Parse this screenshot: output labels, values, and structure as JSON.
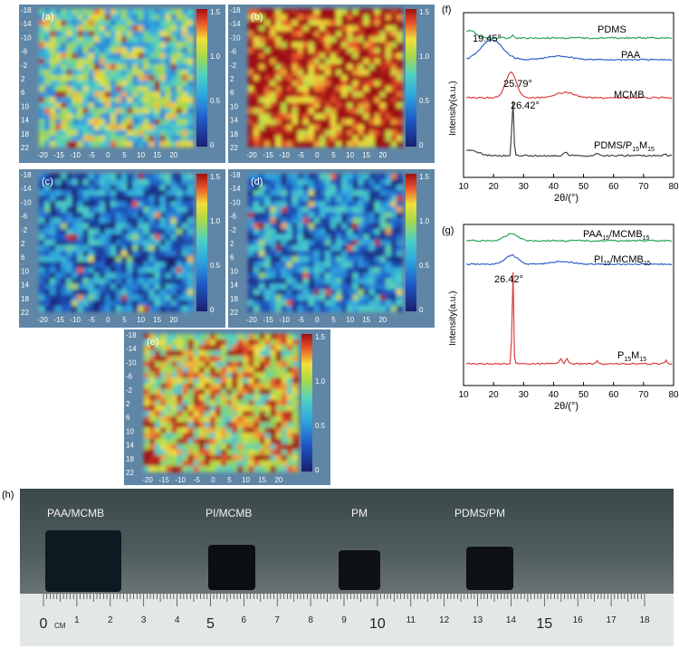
{
  "maps": {
    "ticks_y": [
      "-18",
      "-14",
      "-10",
      "-6",
      "-2",
      "2",
      "6",
      "10",
      "14",
      "18",
      "22"
    ],
    "ticks_x": [
      "-20",
      "-15",
      "-10",
      "-5",
      "0",
      "5",
      "10",
      "15",
      "20"
    ],
    "colorbar_ticks": [
      "1.5",
      "1.0",
      "0.5",
      "0"
    ],
    "panels": [
      {
        "label": "(a)",
        "mean_level": 0.55
      },
      {
        "label": "(b)",
        "mean_level": 0.95
      },
      {
        "label": "(c)",
        "mean_level": 0.25
      },
      {
        "label": "(d)",
        "mean_level": 0.28
      },
      {
        "label": "(e)",
        "mean_level": 0.75
      }
    ]
  },
  "xrd_f": {
    "panel_label": "(f)",
    "ylabel": "Intensity(a.u.)",
    "xlabel": "2θ/(°)",
    "xticks": [
      "10",
      "20",
      "30",
      "40",
      "50",
      "60",
      "70",
      "80"
    ],
    "traces": [
      {
        "name": "PDMS",
        "color": "#2ca35a"
      },
      {
        "name": "PAA",
        "color": "#2d63c8"
      },
      {
        "name": "MCMB",
        "color": "#d9403f"
      },
      {
        "name_main": "PDMS/P",
        "name_sub1": "15",
        "name_mid": "M",
        "name_sub2": "15",
        "color": "#444444"
      }
    ],
    "annotations": [
      "19.45°",
      "25.79°",
      "26.42°"
    ]
  },
  "xrd_g": {
    "panel_label": "(g)",
    "ylabel": "Intensity(a.u.)",
    "xlabel": "2θ/(°)",
    "xticks": [
      "10",
      "20",
      "30",
      "40",
      "50",
      "60",
      "70",
      "80"
    ],
    "traces": [
      {
        "name_main": "PAA",
        "name_sub1": "15",
        "name_mid": "/MCMB",
        "name_sub2": "15",
        "color": "#2ca35a"
      },
      {
        "name_main": "PI",
        "name_sub1": "15",
        "name_mid": "/MCMB",
        "name_sub2": "15",
        "color": "#2d63c8"
      },
      {
        "name_main": "P",
        "name_sub1": "15",
        "name_mid": "M",
        "name_sub2": "15",
        "color": "#d9403f"
      }
    ],
    "annotations": [
      "26.42°"
    ]
  },
  "photo": {
    "panel_label": "(h)",
    "samples": [
      "PAA/MCMB",
      "PI/MCMB",
      "PM",
      "PDMS/PM"
    ],
    "ruler_numbers": [
      "0",
      "1",
      "2",
      "3",
      "4",
      "5",
      "6",
      "7",
      "8",
      "9",
      "10",
      "11",
      "12",
      "13",
      "14",
      "15",
      "16",
      "17",
      "18"
    ],
    "ruler_unit": "CM"
  },
  "chart_data": [
    {
      "type": "line",
      "title": "(f)",
      "xlabel": "2θ/(°)",
      "ylabel": "Intensity(a.u.)",
      "xlim": [
        10,
        80
      ],
      "series": [
        {
          "name": "PDMS",
          "peaks": [
            12
          ]
        },
        {
          "name": "PAA",
          "peaks": [
            19.45
          ]
        },
        {
          "name": "MCMB",
          "peaks": [
            25.79
          ]
        },
        {
          "name": "PDMS/P15M15",
          "peaks": [
            26.42
          ]
        }
      ]
    },
    {
      "type": "line",
      "title": "(g)",
      "xlabel": "2θ/(°)",
      "ylabel": "Intensity(a.u.)",
      "xlim": [
        10,
        80
      ],
      "series": [
        {
          "name": "PAA15/MCMB15",
          "peaks": [
            26
          ]
        },
        {
          "name": "PI15/MCMB15",
          "peaks": [
            26
          ]
        },
        {
          "name": "P15M15",
          "peaks": [
            26.42
          ]
        }
      ]
    }
  ]
}
